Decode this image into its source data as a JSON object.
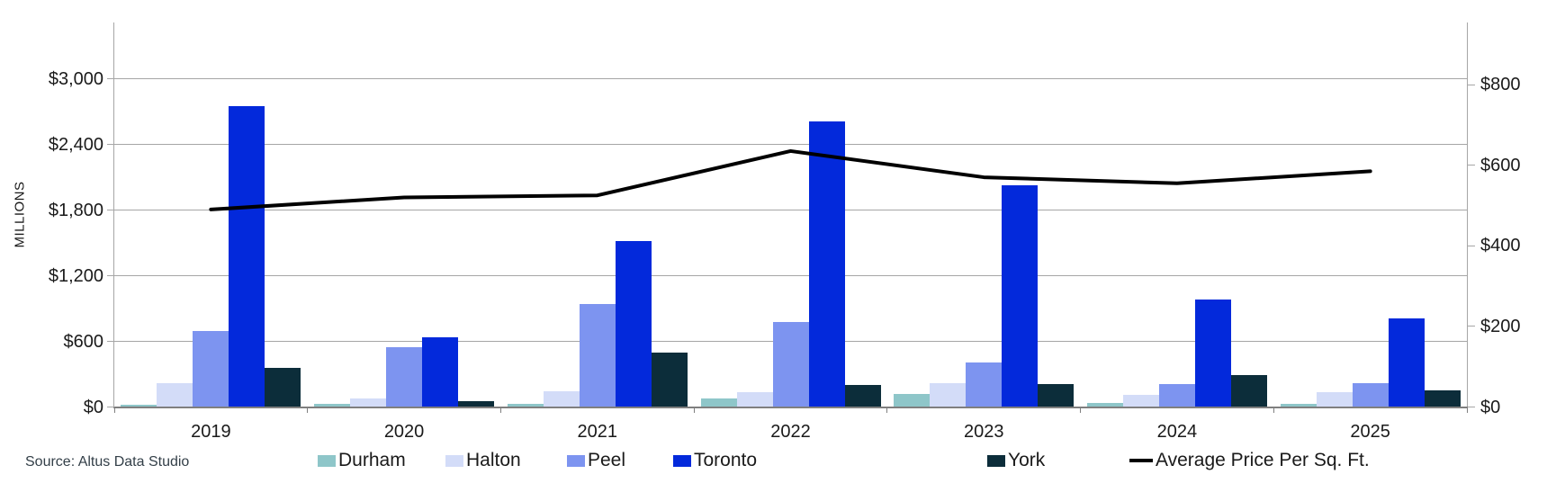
{
  "source_note": "Source: Altus Data Studio",
  "left_axis_title": "MILLIONS",
  "chart_data": {
    "type": "bar",
    "categories": [
      "2019",
      "2020",
      "2021",
      "2022",
      "2023",
      "2024",
      "2025"
    ],
    "series": [
      {
        "name": "Durham",
        "color": "#8EC6C9",
        "values": [
          20,
          30,
          30,
          80,
          120,
          40,
          30
        ]
      },
      {
        "name": "Halton",
        "color": "#D3DCF8",
        "values": [
          220,
          80,
          140,
          135,
          215,
          110,
          135
        ]
      },
      {
        "name": "Peel",
        "color": "#7D94F0",
        "values": [
          695,
          550,
          945,
          775,
          410,
          210,
          215
        ]
      },
      {
        "name": "Toronto",
        "color": "#0329DB",
        "values": [
          2750,
          635,
          1515,
          2610,
          2030,
          985,
          810
        ]
      },
      {
        "name": "York",
        "color": "#0C2D3A",
        "values": [
          360,
          55,
          500,
          200,
          210,
          295,
          155
        ]
      }
    ],
    "line_series": {
      "name": "Average Price Per Sq. Ft.",
      "color": "#000000",
      "values": [
        490,
        520,
        525,
        635,
        570,
        555,
        585
      ],
      "axis": "right"
    },
    "left_axis": {
      "title": "MILLIONS",
      "tick_labels": [
        "$0",
        "$600",
        "$1,200",
        "$1,800",
        "$2,400",
        "$3,000"
      ],
      "tick_values": [
        0,
        600,
        1200,
        1800,
        2400,
        3000
      ],
      "min": 0,
      "max": 3000
    },
    "right_axis": {
      "tick_labels": [
        "$0",
        "$200",
        "$400",
        "$600",
        "$800"
      ],
      "tick_values": [
        0,
        200,
        400,
        600,
        800
      ],
      "min": 0,
      "max": 800
    },
    "grid": "horizontal",
    "legend_position": "bottom",
    "colors": {
      "gridline": "#a6a6a6",
      "axis": "#7f7f7f",
      "text": "#1a1a1a",
      "source_text": "#333f48"
    }
  }
}
